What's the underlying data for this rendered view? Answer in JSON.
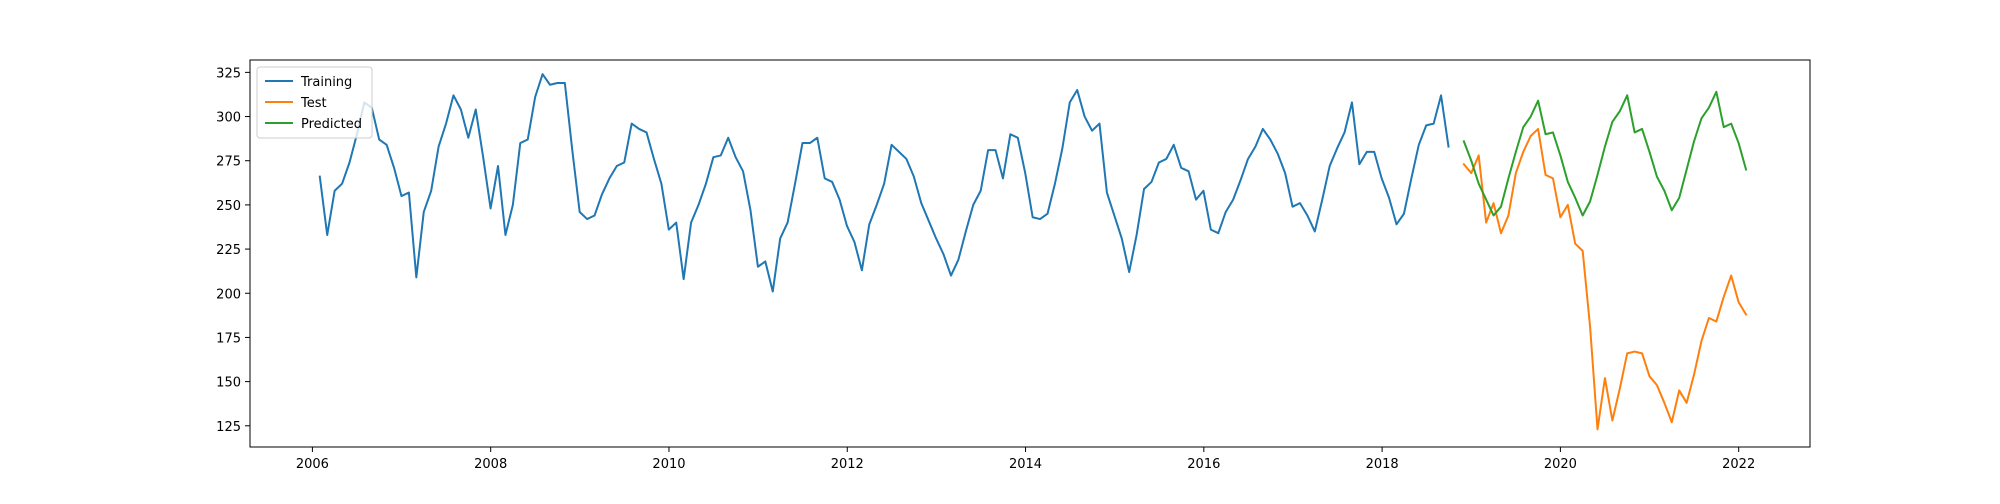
{
  "chart_data": {
    "type": "line",
    "title": "",
    "xlabel": "",
    "ylabel": "",
    "xlim": [
      2005.3,
      2022.8
    ],
    "ylim": [
      113,
      332
    ],
    "x_ticks": [
      2006,
      2008,
      2010,
      2012,
      2014,
      2016,
      2018,
      2020,
      2022
    ],
    "y_ticks": [
      125,
      150,
      175,
      200,
      225,
      250,
      275,
      300,
      325
    ],
    "x_tick_labels": [
      "2006",
      "2008",
      "2010",
      "2012",
      "2014",
      "2016",
      "2018",
      "2020",
      "2022"
    ],
    "y_tick_labels": [
      "125",
      "150",
      "175",
      "200",
      "225",
      "250",
      "275",
      "300",
      "325"
    ],
    "grid": false,
    "legend_position": "top-left",
    "series": [
      {
        "name": "Training",
        "color": "#1f77b4",
        "x_start": 2006.083,
        "x_step": 0.0833,
        "values": [
          266,
          233,
          258,
          262,
          274,
          290,
          308,
          305,
          287,
          284,
          271,
          255,
          257,
          209,
          246,
          258,
          283,
          296,
          312,
          304,
          288,
          304,
          277,
          248,
          272,
          233,
          250,
          285,
          287,
          311,
          324,
          318,
          319,
          319,
          281,
          246,
          242,
          244,
          256,
          265,
          272,
          274,
          296,
          293,
          291,
          276,
          262,
          236,
          240,
          208,
          240,
          250,
          262,
          277,
          278,
          288,
          277,
          269,
          247,
          215,
          218,
          201,
          231,
          240,
          262,
          285,
          285,
          288,
          265,
          263,
          253,
          238,
          229,
          213,
          239,
          250,
          262,
          284,
          280,
          276,
          266,
          251,
          241,
          231,
          222,
          210,
          219,
          235,
          250,
          258,
          281,
          281,
          265,
          290,
          288,
          268,
          243,
          242,
          245,
          262,
          282,
          308,
          315,
          300,
          292,
          296,
          257,
          244,
          231,
          212,
          233,
          259,
          263,
          274,
          276,
          284,
          271,
          269,
          253,
          258,
          236,
          234,
          246,
          253,
          264,
          276,
          283,
          293,
          287,
          279,
          268,
          249,
          251,
          244,
          235,
          253,
          272,
          282,
          291,
          308,
          273,
          280,
          280,
          265,
          254,
          239,
          245,
          265,
          284,
          295,
          296,
          312,
          283
        ]
      },
      {
        "name": "Test",
        "color": "#ff7f0e",
        "x_start": 2018.917,
        "x_step": 0.0833,
        "values": [
          273,
          268,
          278,
          240,
          251,
          234,
          244,
          268,
          280,
          289,
          293,
          267,
          265,
          243,
          250,
          228,
          224,
          181,
          123,
          152,
          128,
          146,
          166,
          167,
          166,
          153,
          148,
          138,
          127,
          145,
          138,
          154,
          173,
          186,
          184,
          198,
          210,
          195,
          188
        ]
      },
      {
        "name": "Predicted",
        "color": "#2ca02c",
        "x_start": 2018.917,
        "x_step": 0.0833,
        "values": [
          286,
          275,
          262,
          253,
          244,
          249,
          265,
          280,
          294,
          300,
          309,
          290,
          291,
          278,
          263,
          254,
          244,
          252,
          267,
          283,
          297,
          303,
          312,
          291,
          293,
          280,
          266,
          258,
          247,
          254,
          270,
          286,
          299,
          305,
          314,
          294,
          296,
          285,
          270
        ]
      }
    ]
  }
}
